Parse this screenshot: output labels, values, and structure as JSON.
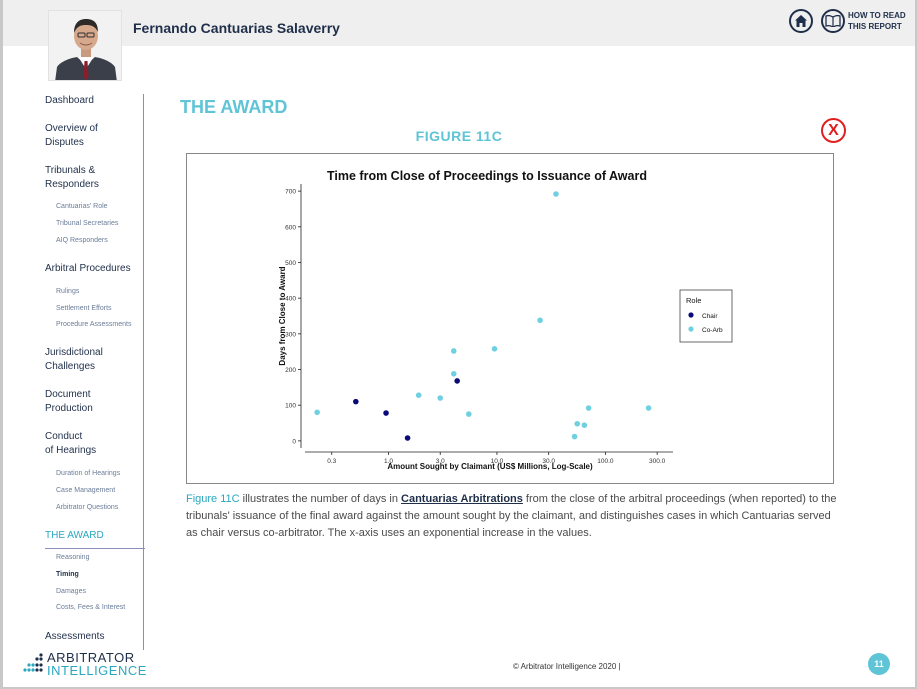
{
  "header": {
    "person_name": "Fernando Cantuarias Salaverry",
    "how_to_read_line1": "HOW TO READ",
    "how_to_read_line2": "THIS REPORT"
  },
  "sidebar": {
    "dashboard": "Dashboard",
    "overview_l1": "Overview of",
    "overview_l2": "Disputes",
    "tribunals_l1": "Tribunals &",
    "tribunals_l2": "Responders",
    "tribunals_sub": [
      "Cantuarias' Role",
      "Tribunal Secretaries",
      "AIQ Responders"
    ],
    "arbitral_procedures": "Arbitral Procedures",
    "arbitral_sub": [
      "Rulings",
      "Settlement Efforts",
      "Procedure Assessments"
    ],
    "jurisdictional_l1": "Jurisdictional",
    "jurisdictional_l2": "Challenges",
    "document_l1": "Document",
    "document_l2": "Production",
    "conduct_l1": "Conduct",
    "conduct_l2": "of Hearings",
    "conduct_sub": [
      "Duration of Hearings",
      "Case Management",
      "Arbitrator Questions"
    ],
    "the_award": "THE AWARD",
    "award_sub": [
      "Reasoning",
      "Timing",
      "Damages",
      "Costs, Fees & Interest"
    ],
    "assessments": "Assessments"
  },
  "main": {
    "section_title": "THE AWARD",
    "figure_title": "FIGURE 11C",
    "close_label": "X",
    "caption_fig_ref": "Figure 11C",
    "caption_part1": " illustrates the number of days in ",
    "caption_bold": "Cantuarias Arbitrations",
    "caption_part2": " from the close of the arbitral proceedings (when reported) to the tribunals' issuance of the final award against the amount sought by the claimant, and distinguishes cases in which Cantuarias served as chair versus co-arbitrator. The x-axis uses an exponential increase in the values."
  },
  "footer": {
    "logo_line1": "ARBITRATOR",
    "logo_line2": "INTELLIGENCE",
    "copyright": "© Arbitrator Intelligence 2020  |",
    "page_number": "11"
  },
  "colors": {
    "chair": "#0a0a78",
    "coarb": "#6fd0e2",
    "accent": "#5ec4d6",
    "navy": "#1f2f4a"
  },
  "chart_data": {
    "type": "scatter",
    "title": "Time from Close of Proceedings to Issuance of Award",
    "xlabel": "Amount Sought by Claimant (US$ Millions, Log-Scale)",
    "ylabel": "Days from Close to Award",
    "x_scale": "log",
    "xlim": [
      0.17,
      420
    ],
    "ylim": [
      -20,
      720
    ],
    "x_ticks": [
      0.3,
      1.0,
      3.0,
      10.0,
      30.0,
      100.0,
      300.0
    ],
    "x_tick_labels": [
      "0.3",
      "1.0",
      "3.0",
      "10.0",
      "30.0",
      "100.0",
      "300.0"
    ],
    "y_ticks": [
      0,
      100,
      200,
      300,
      400,
      500,
      600,
      700
    ],
    "legend": {
      "title": "Role",
      "position": "right"
    },
    "series": [
      {
        "name": "Chair",
        "points": [
          {
            "x": 0.5,
            "y": 110
          },
          {
            "x": 0.95,
            "y": 78
          },
          {
            "x": 1.5,
            "y": 8
          },
          {
            "x": 4.3,
            "y": 168
          }
        ]
      },
      {
        "name": "Co-Arb",
        "points": [
          {
            "x": 0.22,
            "y": 80
          },
          {
            "x": 1.9,
            "y": 128
          },
          {
            "x": 3.0,
            "y": 120
          },
          {
            "x": 4.0,
            "y": 188
          },
          {
            "x": 4.0,
            "y": 252
          },
          {
            "x": 5.5,
            "y": 75
          },
          {
            "x": 9.5,
            "y": 258
          },
          {
            "x": 25,
            "y": 338
          },
          {
            "x": 35,
            "y": 692
          },
          {
            "x": 52,
            "y": 12
          },
          {
            "x": 55,
            "y": 48
          },
          {
            "x": 64,
            "y": 44
          },
          {
            "x": 70,
            "y": 92
          },
          {
            "x": 250,
            "y": 92
          }
        ]
      }
    ]
  }
}
